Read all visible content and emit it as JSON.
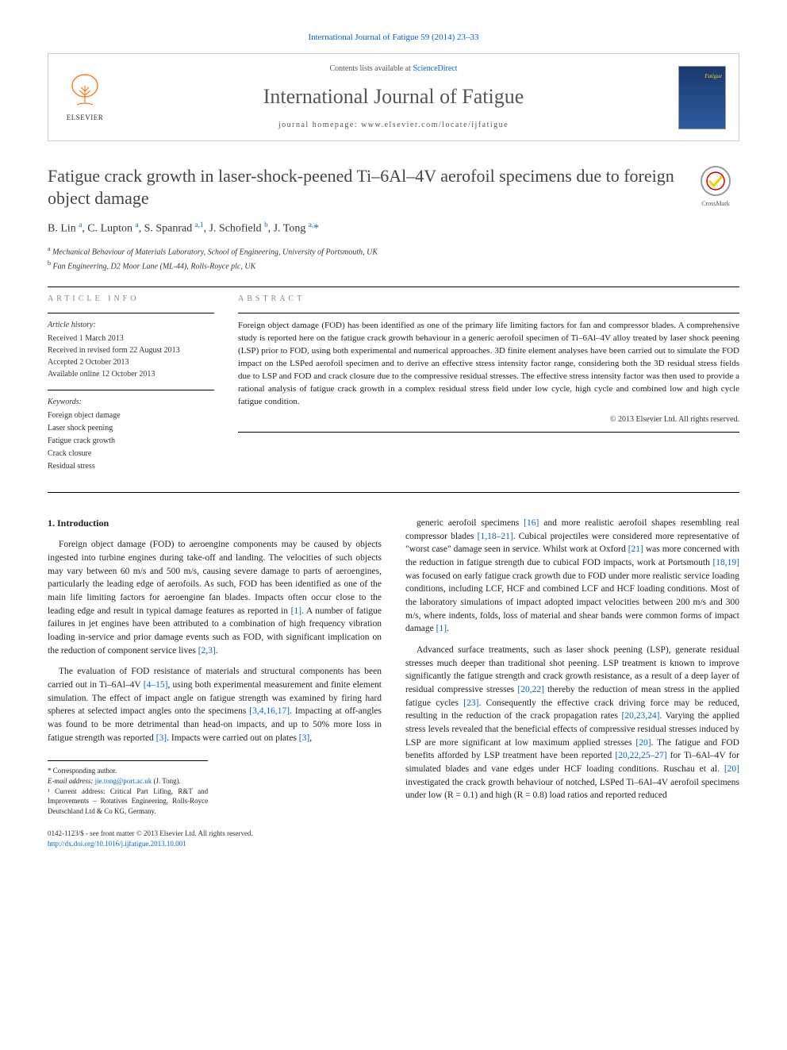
{
  "citation": "International Journal of Fatigue 59 (2014) 23–33",
  "header": {
    "contents_prefix": "Contents lists available at ",
    "contents_link": "ScienceDirect",
    "journal_name": "International Journal of Fatigue",
    "homepage_prefix": "journal homepage: ",
    "homepage_url": "www.elsevier.com/locate/ijfatigue",
    "publisher": "ELSEVIER"
  },
  "crossmark_label": "CrossMark",
  "title": "Fatigue crack growth in laser-shock-peened Ti–6Al–4V aerofoil specimens due to foreign object damage",
  "authors_html": "B. Lin",
  "authors": [
    {
      "name": "B. Lin",
      "sup": "a"
    },
    {
      "name": "C. Lupton",
      "sup": "a"
    },
    {
      "name": "S. Spanrad",
      "sup": "a,1"
    },
    {
      "name": "J. Schofield",
      "sup": "b"
    },
    {
      "name": "J. Tong",
      "sup": "a,*"
    }
  ],
  "affiliations": [
    {
      "sup": "a",
      "text": "Mechanical Behaviour of Materials Laboratory, School of Engineering, University of Portsmouth, UK"
    },
    {
      "sup": "b",
      "text": "Fan Engineering, D2 Moor Lane (ML-44), Rolls-Royce plc, UK"
    }
  ],
  "info": {
    "label": "ARTICLE INFO",
    "history_heading": "Article history:",
    "history": "Received 1 March 2013\nReceived in revised form 22 August 2013\nAccepted 2 October 2013\nAvailable online 12 October 2013",
    "keywords_heading": "Keywords:",
    "keywords": "Foreign object damage\nLaser shock peening\nFatigue crack growth\nCrack closure\nResidual stress"
  },
  "abstract": {
    "label": "ABSTRACT",
    "text": "Foreign object damage (FOD) has been identified as one of the primary life limiting factors for fan and compressor blades. A comprehensive study is reported here on the fatigue crack growth behaviour in a generic aerofoil specimen of Ti–6Al–4V alloy treated by laser shock peening (LSP) prior to FOD, using both experimental and numerical approaches. 3D finite element analyses have been carried out to simulate the FOD impact on the LSPed aerofoil specimen and to derive an effective stress intensity factor range, considering both the 3D residual stress fields due to LSP and FOD and crack closure due to the compressive residual stresses. The effective stress intensity factor was then used to provide a rational analysis of fatigue crack growth in a complex residual stress field under low cycle, high cycle and combined low and high cycle fatigue condition.",
    "copyright": "© 2013 Elsevier Ltd. All rights reserved."
  },
  "body": {
    "section_heading": "1. Introduction",
    "left_paras": [
      "Foreign object damage (FOD) to aeroengine components may be caused by objects ingested into turbine engines during take-off and landing. The velocities of such objects may vary between 60 m/s and 500 m/s, causing severe damage to parts of aeroengines, particularly the leading edge of aerofoils. As such, FOD has been identified as one of the main life limiting factors for aeroengine fan blades. Impacts often occur close to the leading edge and result in typical damage features as reported in [1]. A number of fatigue failures in jet engines have been attributed to a combination of high frequency vibration loading in-service and prior damage events such as FOD, with significant implication on the reduction of component service lives [2,3].",
      "The evaluation of FOD resistance of materials and structural components has been carried out in Ti–6Al–4V [4–15], using both experimental measurement and finite element simulation. The effect of impact angle on fatigue strength was examined by firing hard spheres at selected impact angles onto the specimens [3,4,16,17]. Impacting at off-angles was found to be more detrimental than head-on impacts, and up to 50% more loss in fatigue strength was reported [3]. Impacts were carried out on plates [3],"
    ],
    "right_paras": [
      "generic aerofoil specimens [16] and more realistic aerofoil shapes resembling real compressor blades [1,18–21]. Cubical projectiles were considered more representative of \"worst case\" damage seen in service. Whilst work at Oxford [21] was more concerned with the reduction in fatigue strength due to cubical FOD impacts, work at Portsmouth [18,19] was focused on early fatigue crack growth due to FOD under more realistic service loading conditions, including LCF, HCF and combined LCF and HCF loading conditions. Most of the laboratory simulations of impact adopted impact velocities between 200 m/s and 300 m/s, where indents, folds, loss of material and shear bands were common forms of impact damage [1].",
      "Advanced surface treatments, such as laser shock peening (LSP), generate residual stresses much deeper than traditional shot peening. LSP treatment is known to improve significantly the fatigue strength and crack growth resistance, as a result of a deep layer of residual compressive stresses [20,22] thereby the reduction of mean stress in the applied fatigue cycles [23]. Consequently the effective crack driving force may be reduced, resulting in the reduction of the crack propagation rates [20,23,24]. Varying the applied stress levels revealed that the beneficial effects of compressive residual stresses induced by LSP are more significant at low maximum applied stresses [20]. The fatigue and FOD benefits afforded by LSP treatment have been reported [20,22,25–27] for Ti–6Al–4V for simulated blades and vane edges under HCF loading conditions. Ruschau et al. [20] investigated the crack growth behaviour of notched, LSPed Ti–6Al–4V aerofoil specimens under low (R = 0.1) and high (R = 0.8) load ratios and reported reduced"
    ]
  },
  "footnotes": {
    "corresponding": "* Corresponding author.",
    "email_label": "E-mail address: ",
    "email": "jie.tong@port.ac.uk",
    "email_who": " (J. Tong).",
    "note1": "¹ Current address: Critical Part Lifing, R&T and Improvements – Rotatives Engineering, Rolls-Royce Deutschland Ltd & Co KG, Germany."
  },
  "bottom": {
    "issn_line": "0142-1123/$ - see front matter © 2013 Elsevier Ltd. All rights reserved.",
    "doi": "http://dx.doi.org/10.1016/j.ijfatigue.2013.10.001"
  },
  "colors": {
    "link": "#0066cc",
    "elsevier_orange": "#ff6600",
    "title_gray": "#444444",
    "journal_gray": "#555555"
  }
}
